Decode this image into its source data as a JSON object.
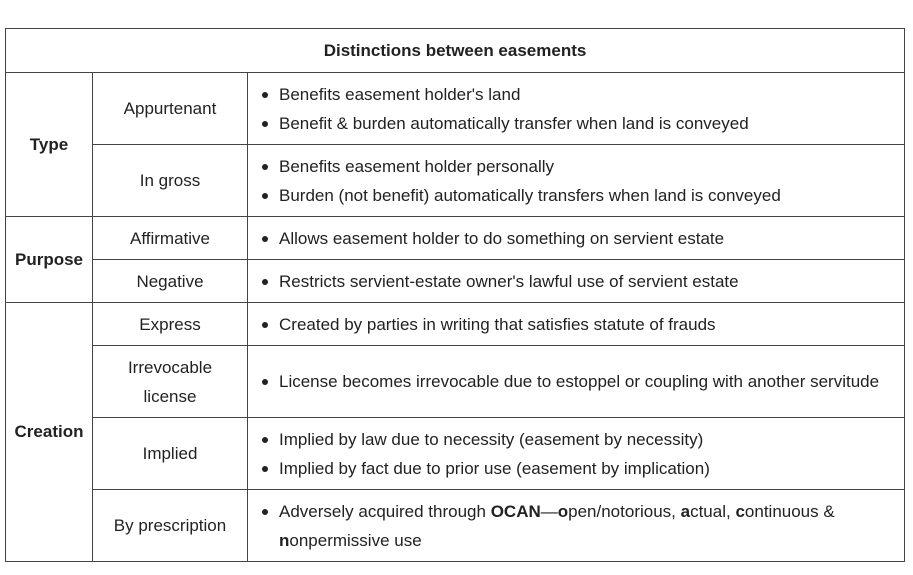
{
  "title": "Distinctions between easements",
  "groups": {
    "type": "Type",
    "purpose": "Purpose",
    "creation": "Creation"
  },
  "rows": [
    {
      "label": "Appurtenant",
      "bullets": [
        "Benefits easement holder's land",
        "Benefit & burden automatically transfer when land is conveyed"
      ]
    },
    {
      "label": "In gross",
      "bullets": [
        "Benefits easement holder personally",
        "Burden (not benefit) automatically transfers when land is conveyed"
      ]
    },
    {
      "label": "Affirmative",
      "bullets": [
        "Allows easement holder to do something on servient estate"
      ]
    },
    {
      "label": "Negative",
      "bullets": [
        "Restricts servient-estate owner's lawful use of servient estate"
      ]
    },
    {
      "label": "Express",
      "bullets": [
        "Created by parties in writing that satisfies statute of frauds"
      ]
    },
    {
      "label_line1": "Irrevocable",
      "label_line2": "license",
      "bullets": [
        "License becomes irrevocable due to estoppel or coupling with another servitude"
      ]
    },
    {
      "label": "Implied",
      "bullets": [
        "Implied by law due to necessity (easement by necessity)",
        "Implied by fact due to prior use (easement by implication)"
      ]
    },
    {
      "label": "By prescription",
      "prescription": {
        "prefix": "Adversely acquired through ",
        "acronym": "OCAN",
        "dash": "—",
        "o": "o",
        "o_rest": "pen/notorious, ",
        "a": "a",
        "a_rest": "ctual, ",
        "c": "c",
        "c_rest": "ontinuous & ",
        "n": "n",
        "n_rest": "onpermissive use"
      }
    }
  ]
}
